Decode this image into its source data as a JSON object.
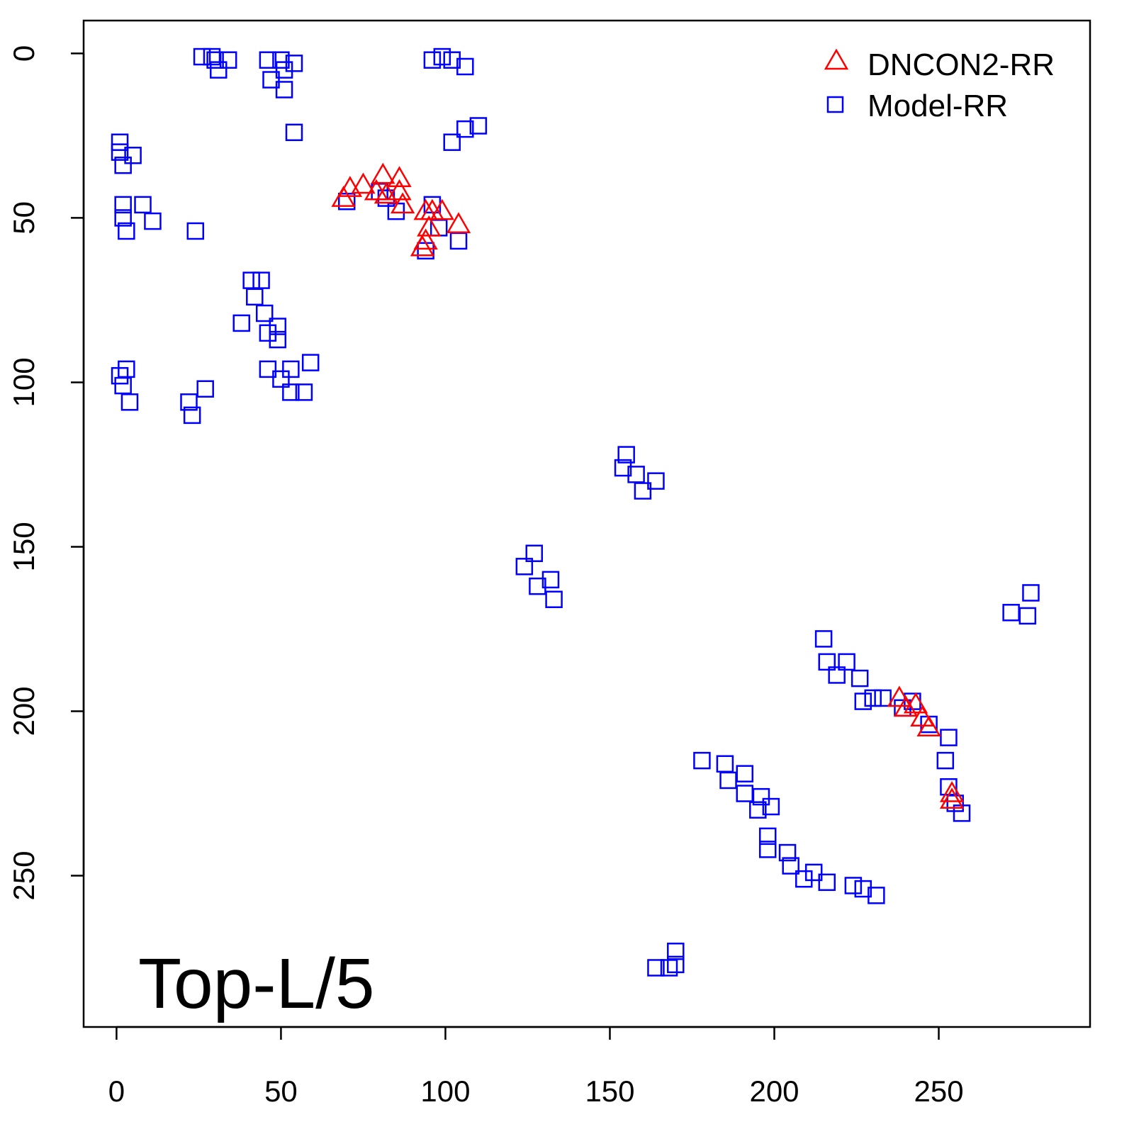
{
  "chart_data": {
    "type": "scatter",
    "title": "",
    "xlabel": "",
    "ylabel": "",
    "xlim": [
      -10,
      296
    ],
    "ylim": [
      296,
      -10
    ],
    "y_reversed": true,
    "grid": false,
    "x_ticks": [
      "0",
      "50",
      "100",
      "150",
      "200",
      "250"
    ],
    "y_ticks": [
      "0",
      "50",
      "100",
      "150",
      "200",
      "250"
    ],
    "legend_position": "top-right",
    "annotation": "Top-L/5",
    "series": [
      {
        "name": "DNCON2-RR",
        "marker": "triangle",
        "color": "#ff0000",
        "points": [
          [
            69,
            44
          ],
          [
            71,
            41
          ],
          [
            75,
            40
          ],
          [
            79,
            42
          ],
          [
            81,
            37
          ],
          [
            86,
            38
          ],
          [
            82,
            43
          ],
          [
            86,
            42
          ],
          [
            87,
            46
          ],
          [
            94,
            48
          ],
          [
            95,
            53
          ],
          [
            96,
            48
          ],
          [
            99,
            48
          ],
          [
            104,
            52
          ],
          [
            93,
            59
          ],
          [
            94,
            57
          ],
          [
            238,
            196
          ],
          [
            240,
            199
          ],
          [
            243,
            198
          ],
          [
            245,
            202
          ],
          [
            247,
            205
          ],
          [
            254,
            225
          ],
          [
            254,
            227
          ]
        ]
      },
      {
        "name": "Model-RR",
        "marker": "square",
        "color": "#0000ff",
        "points": [
          [
            26,
            1
          ],
          [
            29,
            1
          ],
          [
            31,
            5
          ],
          [
            34,
            2
          ],
          [
            30,
            2
          ],
          [
            46,
            2
          ],
          [
            47,
            8
          ],
          [
            50,
            2
          ],
          [
            51,
            5
          ],
          [
            51,
            11
          ],
          [
            54,
            3
          ],
          [
            54,
            24
          ],
          [
            96,
            2
          ],
          [
            99,
            1
          ],
          [
            102,
            2
          ],
          [
            106,
            4
          ],
          [
            102,
            27
          ],
          [
            106,
            23
          ],
          [
            110,
            22
          ],
          [
            1,
            27
          ],
          [
            1,
            30
          ],
          [
            2,
            34
          ],
          [
            5,
            31
          ],
          [
            2,
            46
          ],
          [
            2,
            50
          ],
          [
            3,
            54
          ],
          [
            8,
            46
          ],
          [
            11,
            51
          ],
          [
            24,
            54
          ],
          [
            1,
            98
          ],
          [
            3,
            96
          ],
          [
            4,
            106
          ],
          [
            2,
            101
          ],
          [
            22,
            106
          ],
          [
            23,
            110
          ],
          [
            27,
            102
          ],
          [
            41,
            69
          ],
          [
            42,
            74
          ],
          [
            44,
            69
          ],
          [
            38,
            82
          ],
          [
            45,
            79
          ],
          [
            46,
            85
          ],
          [
            49,
            87
          ],
          [
            49,
            83
          ],
          [
            46,
            96
          ],
          [
            50,
            99
          ],
          [
            53,
            103
          ],
          [
            57,
            103
          ],
          [
            59,
            94
          ],
          [
            53,
            96
          ],
          [
            70,
            45
          ],
          [
            80,
            42
          ],
          [
            85,
            48
          ],
          [
            82,
            44
          ],
          [
            94,
            60
          ],
          [
            104,
            57
          ],
          [
            98,
            53
          ],
          [
            96,
            46
          ],
          [
            154,
            126
          ],
          [
            160,
            133
          ],
          [
            164,
            130
          ],
          [
            155,
            122
          ],
          [
            158,
            128
          ],
          [
            124,
            156
          ],
          [
            128,
            162
          ],
          [
            133,
            166
          ],
          [
            132,
            160
          ],
          [
            127,
            152
          ],
          [
            272,
            170
          ],
          [
            278,
            164
          ],
          [
            277,
            171
          ],
          [
            215,
            178
          ],
          [
            216,
            185
          ],
          [
            219,
            189
          ],
          [
            222,
            185
          ],
          [
            226,
            190
          ],
          [
            230,
            196
          ],
          [
            227,
            197
          ],
          [
            233,
            196
          ],
          [
            239,
            199
          ],
          [
            242,
            197
          ],
          [
            247,
            204
          ],
          [
            253,
            208
          ],
          [
            252,
            215
          ],
          [
            253,
            223
          ],
          [
            255,
            228
          ],
          [
            257,
            231
          ],
          [
            178,
            215
          ],
          [
            185,
            216
          ],
          [
            186,
            221
          ],
          [
            191,
            219
          ],
          [
            191,
            225
          ],
          [
            196,
            226
          ],
          [
            195,
            230
          ],
          [
            199,
            229
          ],
          [
            198,
            238
          ],
          [
            198,
            242
          ],
          [
            204,
            243
          ],
          [
            205,
            247
          ],
          [
            209,
            251
          ],
          [
            212,
            249
          ],
          [
            216,
            252
          ],
          [
            224,
            253
          ],
          [
            227,
            254
          ],
          [
            231,
            256
          ],
          [
            164,
            278
          ],
          [
            168,
            278
          ],
          [
            170,
            273
          ],
          [
            170,
            277
          ]
        ]
      }
    ]
  }
}
